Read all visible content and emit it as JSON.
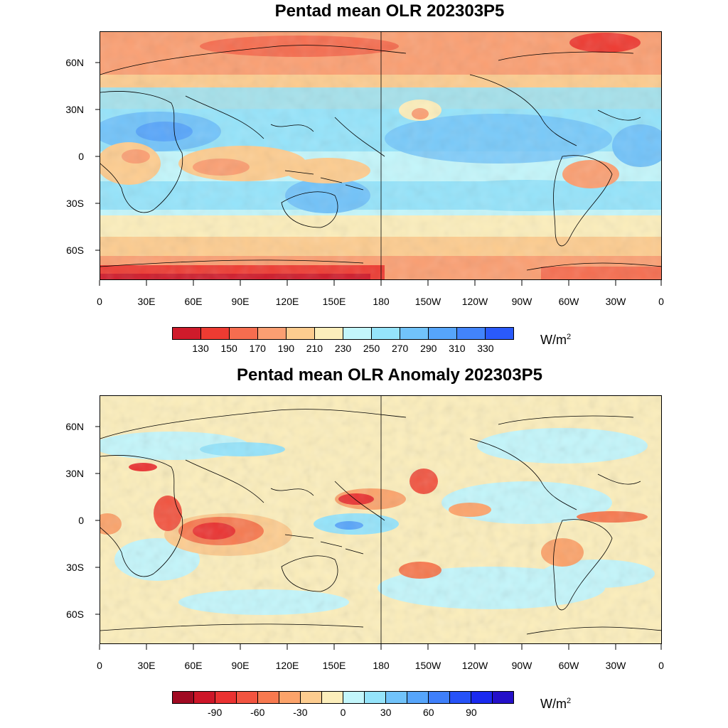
{
  "panels": [
    {
      "title": "Pentad mean OLR 202303P5",
      "lat_labels": [
        "60N",
        "30N",
        "0",
        "30S",
        "60S"
      ],
      "lon_labels": [
        "0",
        "30E",
        "60E",
        "90E",
        "120E",
        "150E",
        "180",
        "150W",
        "120W",
        "90W",
        "60W",
        "30W",
        "0"
      ],
      "colorbar": {
        "colors": [
          "#cf1b2b",
          "#ee3b32",
          "#f66d4f",
          "#fb9f72",
          "#fdcc8f",
          "#fceebb",
          "#c3f6fb",
          "#95e4fb",
          "#71c3fa",
          "#56a5fb",
          "#4284fb",
          "#2a5afa"
        ],
        "labels": [
          "130",
          "150",
          "170",
          "190",
          "210",
          "230",
          "250",
          "270",
          "290",
          "310",
          "330"
        ],
        "units": "W/m",
        "units_sup": "2"
      }
    },
    {
      "title": "Pentad mean OLR Anomaly 202303P5",
      "lat_labels": [
        "60N",
        "30N",
        "0",
        "30S",
        "60S"
      ],
      "lon_labels": [
        "0",
        "30E",
        "60E",
        "90E",
        "120E",
        "150E",
        "180",
        "150W",
        "120W",
        "90W",
        "60W",
        "30W",
        "0"
      ],
      "colorbar": {
        "colors": [
          "#a00a22",
          "#cd1628",
          "#ea3231",
          "#f25440",
          "#f7794f",
          "#fca36a",
          "#fdcc8f",
          "#fceebb",
          "#c3f6fb",
          "#95e4fb",
          "#71c3fa",
          "#56a5fb",
          "#3e7ffb",
          "#2652f8",
          "#1a2aef",
          "#2410c8"
        ],
        "labels": [
          "-90",
          "-60",
          "-30",
          "0",
          "30",
          "60",
          "90"
        ],
        "label_positions": [
          2,
          4,
          6,
          8,
          10,
          12,
          14
        ],
        "units": "W/m",
        "units_sup": "2"
      }
    }
  ]
}
